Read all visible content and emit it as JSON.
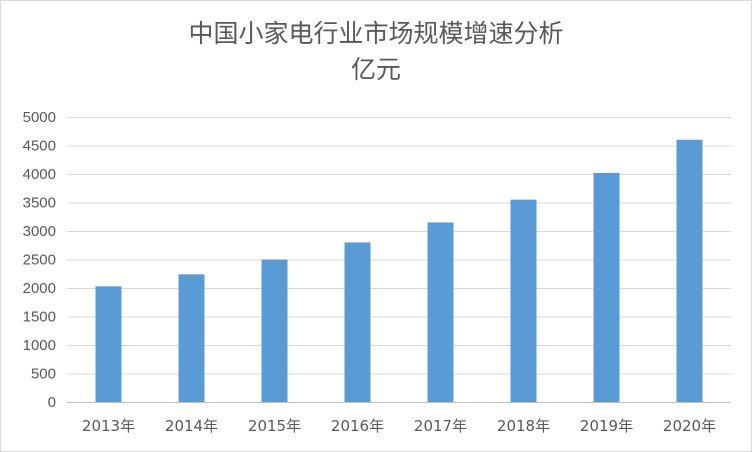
{
  "chart_data": {
    "type": "bar",
    "title": "中国小家电行业市场规模增速分析",
    "subtitle": "亿元",
    "categories": [
      "2013年",
      "2014年",
      "2015年",
      "2016年",
      "2017年",
      "2018年",
      "2019年",
      "2020年"
    ],
    "values": [
      2030,
      2240,
      2500,
      2800,
      3150,
      3550,
      4020,
      4600
    ],
    "ylim": [
      0,
      5000
    ],
    "yticks": [
      0,
      500,
      1000,
      1500,
      2000,
      2500,
      3000,
      3500,
      4000,
      4500,
      5000
    ],
    "grid": true,
    "legend": "none",
    "bar_color": "#5b9bd5",
    "grid_color": "#d9d9d9",
    "text_color": "#595959"
  }
}
